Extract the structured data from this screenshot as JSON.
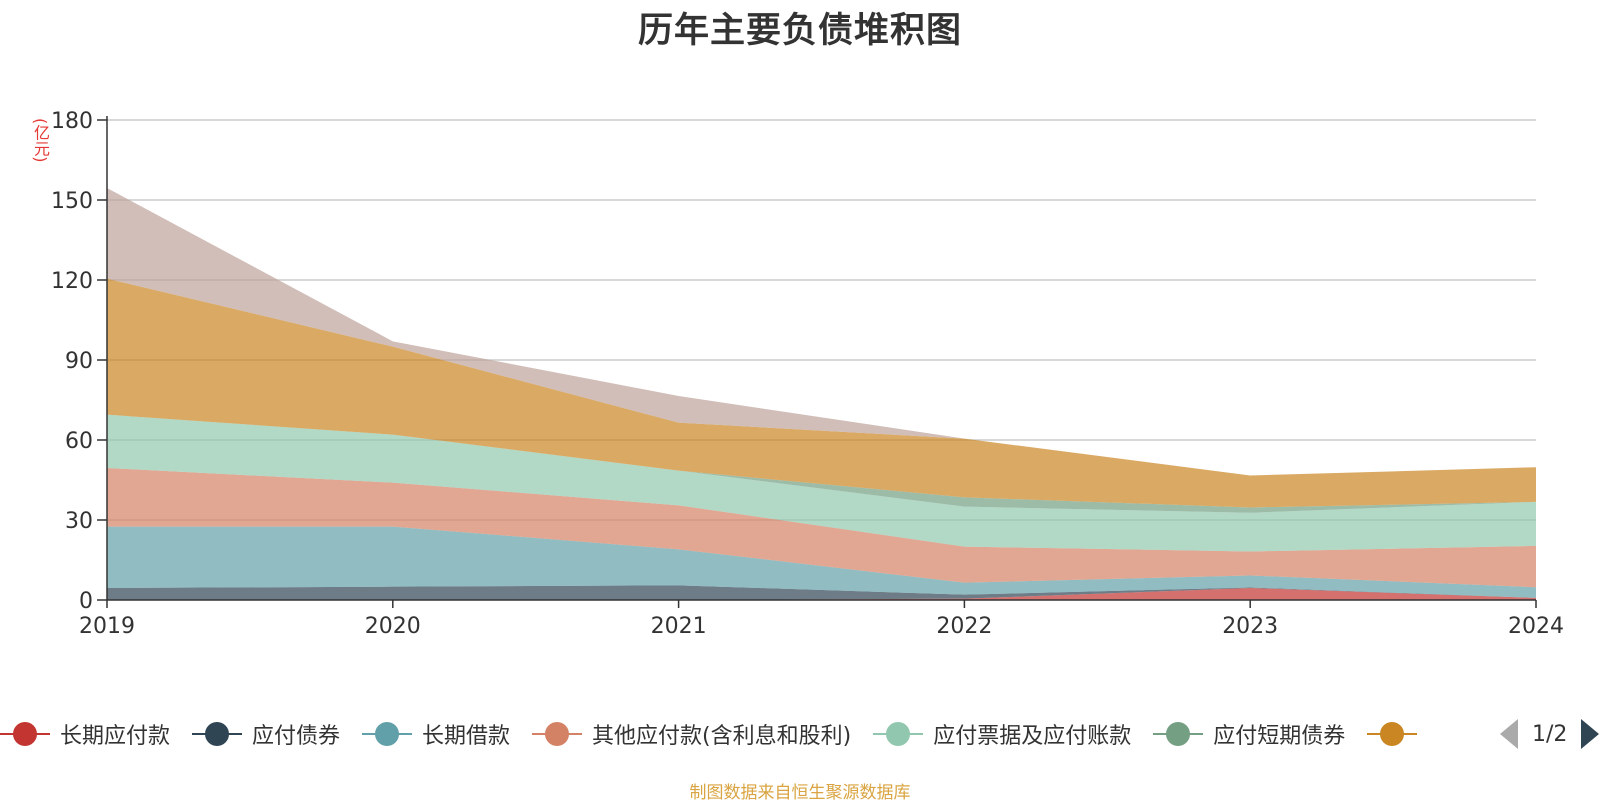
{
  "title": "历年主要负债堆积图",
  "unit_label": "(亿元)",
  "footer": "制图数据来自恒生聚源数据库",
  "pager": {
    "text": "1/2"
  },
  "legend": [
    {
      "name": "长期应付款",
      "color": "#c23531"
    },
    {
      "name": "应付债券",
      "color": "#2f4554"
    },
    {
      "name": "长期借款",
      "color": "#61a0a8"
    },
    {
      "name": "其他应付款(含利息和股利)",
      "color": "#d48265"
    },
    {
      "name": "应付票据及应付账款",
      "color": "#91c7ae"
    },
    {
      "name": "应付短期债券",
      "color": "#749f83"
    },
    {
      "name": "",
      "color": "#ca8622"
    }
  ],
  "chart_data": {
    "type": "area",
    "stacked": true,
    "x": [
      "2019",
      "2020",
      "2021",
      "2022",
      "2023",
      "2024"
    ],
    "ylim": [
      0,
      180
    ],
    "yticks": [
      0,
      30,
      60,
      90,
      120,
      150,
      180
    ],
    "grid": true,
    "series": [
      {
        "name": "长期应付款",
        "color": "#c23531",
        "values": [
          0,
          0,
          0,
          0.5,
          4.5,
          0.8
        ]
      },
      {
        "name": "应付债券",
        "color": "#2f4554",
        "values": [
          4.5,
          5,
          5.5,
          1.5,
          0.2,
          0
        ]
      },
      {
        "name": "长期借款",
        "color": "#61a0a8",
        "values": [
          23,
          22.5,
          13.5,
          4.5,
          4.5,
          4
        ]
      },
      {
        "name": "其他应付款(含利息和股利)",
        "color": "#d48265",
        "values": [
          22,
          16.5,
          16.5,
          13.5,
          9,
          15.5
        ]
      },
      {
        "name": "应付票据及应付账款",
        "color": "#91c7ae",
        "values": [
          20,
          18,
          13,
          15,
          14.5,
          16.5
        ]
      },
      {
        "name": "应付短期债券",
        "color": "#749f83",
        "values": [
          0,
          0,
          0,
          3.5,
          2,
          0
        ]
      },
      {
        "color": "#ca8622",
        "values": [
          51,
          33,
          18,
          22,
          12,
          13
        ]
      },
      {
        "color": "#bda29a",
        "values": [
          34,
          2,
          10,
          0,
          0,
          0
        ]
      }
    ]
  }
}
